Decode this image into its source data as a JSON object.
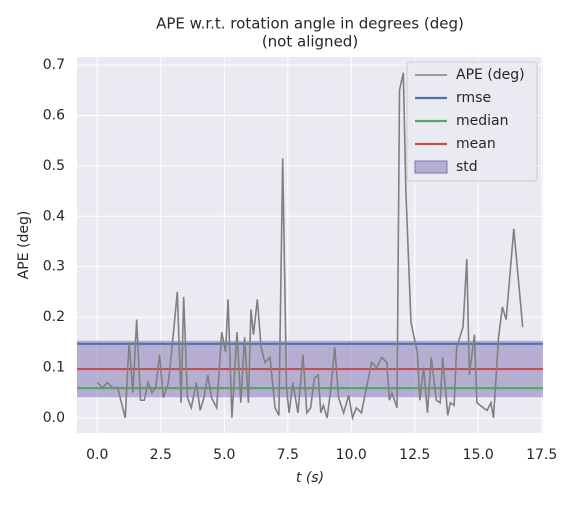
{
  "chart_data": {
    "type": "line",
    "title": "APE w.r.t. rotation angle in degrees (deg)",
    "subtitle": "(not aligned)",
    "x_label": "t (s)",
    "y_label": "APE (deg)",
    "xlim": [
      -0.8,
      17.55
    ],
    "ylim": [
      -0.03,
      0.716
    ],
    "xticks": [
      {
        "value": 0,
        "label": "0.0"
      },
      {
        "value": 2.5,
        "label": "2.5"
      },
      {
        "value": 5,
        "label": "5.0"
      },
      {
        "value": 7.5,
        "label": "7.5"
      },
      {
        "value": 10,
        "label": "10.0"
      },
      {
        "value": 12.5,
        "label": "12.5"
      },
      {
        "value": 15,
        "label": "15.0"
      },
      {
        "value": 17.5,
        "label": "17.5"
      }
    ],
    "yticks": [
      {
        "value": 0,
        "label": "0.0"
      },
      {
        "value": 0.1,
        "label": "0.1"
      },
      {
        "value": 0.2,
        "label": "0.2"
      },
      {
        "value": 0.3,
        "label": "0.3"
      },
      {
        "value": 0.4,
        "label": "0.4"
      },
      {
        "value": 0.5,
        "label": "0.5"
      },
      {
        "value": 0.6,
        "label": "0.6"
      },
      {
        "value": 0.7,
        "label": "0.7"
      }
    ],
    "grid": true,
    "legend": "upper right",
    "series": [
      {
        "name": "APE (deg)",
        "color": "#808080",
        "x": [
          0.0,
          0.2,
          0.4,
          0.6,
          0.8,
          0.9,
          1.1,
          1.25,
          1.4,
          1.55,
          1.7,
          1.85,
          2.0,
          2.15,
          2.3,
          2.45,
          2.6,
          2.8,
          3.0,
          3.15,
          3.3,
          3.4,
          3.55,
          3.7,
          3.9,
          4.05,
          4.2,
          4.35,
          4.5,
          4.7,
          4.9,
          5.05,
          5.15,
          5.3,
          5.5,
          5.65,
          5.8,
          5.95,
          6.05,
          6.15,
          6.3,
          6.45,
          6.6,
          6.8,
          7.0,
          7.15,
          7.3,
          7.45,
          7.55,
          7.7,
          7.9,
          8.1,
          8.25,
          8.4,
          8.55,
          8.7,
          8.8,
          8.9,
          9.05,
          9.2,
          9.35,
          9.5,
          9.7,
          9.9,
          10.05,
          10.2,
          10.4,
          10.6,
          10.8,
          11.0,
          11.2,
          11.4,
          11.5,
          11.6,
          11.8,
          11.9,
          12.05,
          12.15,
          12.35,
          12.6,
          12.7,
          12.85,
          13.0,
          13.15,
          13.35,
          13.5,
          13.6,
          13.8,
          13.9,
          14.05,
          14.15,
          14.4,
          14.55,
          14.65,
          14.85,
          14.95,
          15.2,
          15.35,
          15.5,
          15.6,
          15.8,
          15.95,
          16.1,
          16.4,
          16.75
        ],
        "values": [
          0.07,
          0.06,
          0.07,
          0.06,
          0.06,
          0.04,
          0.0,
          0.15,
          0.05,
          0.195,
          0.035,
          0.035,
          0.07,
          0.05,
          0.06,
          0.125,
          0.04,
          0.07,
          0.17,
          0.25,
          0.03,
          0.24,
          0.04,
          0.02,
          0.07,
          0.015,
          0.04,
          0.085,
          0.04,
          0.02,
          0.17,
          0.13,
          0.235,
          0.0,
          0.17,
          0.03,
          0.16,
          0.03,
          0.215,
          0.165,
          0.235,
          0.14,
          0.11,
          0.12,
          0.02,
          0.005,
          0.515,
          0.06,
          0.01,
          0.07,
          0.01,
          0.125,
          0.01,
          0.02,
          0.08,
          0.085,
          0.01,
          0.025,
          0.0,
          0.06,
          0.14,
          0.04,
          0.01,
          0.045,
          0.0,
          0.02,
          0.01,
          0.06,
          0.11,
          0.1,
          0.12,
          0.11,
          0.035,
          0.05,
          0.02,
          0.65,
          0.685,
          0.45,
          0.19,
          0.13,
          0.035,
          0.1,
          0.01,
          0.12,
          0.035,
          0.03,
          0.12,
          0.005,
          0.03,
          0.025,
          0.14,
          0.18,
          0.315,
          0.085,
          0.165,
          0.03,
          0.02,
          0.015,
          0.03,
          0.0,
          0.16,
          0.22,
          0.195,
          0.375,
          0.18
        ]
      }
    ],
    "statistics": [
      {
        "name": "rmse",
        "color": "#4c72b0",
        "value": 0.147
      },
      {
        "name": "median",
        "color": "#55a868",
        "value": 0.059
      },
      {
        "name": "mean",
        "color": "#c44e52",
        "value": 0.097
      }
    ],
    "std": {
      "name": "std",
      "color": "#8172b2",
      "value": 0.056
    }
  }
}
